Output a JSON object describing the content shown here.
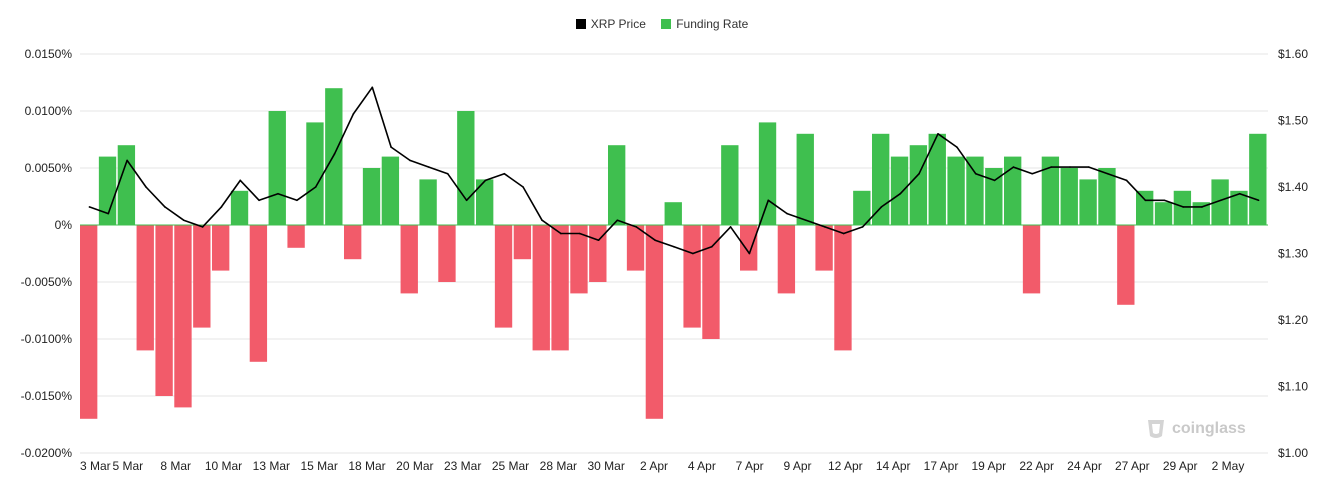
{
  "legend": {
    "price_label": "XRP Price",
    "funding_label": "Funding Rate"
  },
  "colors": {
    "price": "#000000",
    "positive": "#3fbf4f",
    "negative": "#f25b6a",
    "grid": "#e6e6e6"
  },
  "watermark": "coinglass",
  "chart_data": {
    "type": "area",
    "left_axis": {
      "ticks": [
        "0.0150%",
        "0.0100%",
        "0.0050%",
        "0%",
        "-0.0050%",
        "-0.0100%",
        "-0.0150%",
        "-0.0200%"
      ],
      "values": [
        0.015,
        0.01,
        0.005,
        0,
        -0.005,
        -0.01,
        -0.015,
        -0.02
      ],
      "range": [
        -0.02,
        0.015
      ]
    },
    "right_axis": {
      "ticks": [
        "$1.60",
        "$1.50",
        "$1.40",
        "$1.30",
        "$1.20",
        "$1.10",
        "$1.00"
      ],
      "values": [
        1.6,
        1.5,
        1.4,
        1.3,
        1.2,
        1.1,
        1.0
      ],
      "range": [
        1.0,
        1.6
      ]
    },
    "x_ticks": [
      "3 Mar",
      "5 Mar",
      "8 Mar",
      "10 Mar",
      "13 Mar",
      "15 Mar",
      "18 Mar",
      "20 Mar",
      "23 Mar",
      "25 Mar",
      "28 Mar",
      "30 Mar",
      "2 Apr",
      "4 Apr",
      "7 Apr",
      "9 Apr",
      "12 Apr",
      "14 Apr",
      "17 Apr",
      "19 Apr",
      "22 Apr",
      "24 Apr",
      "27 Apr",
      "29 Apr",
      "2 May"
    ],
    "series": [
      {
        "name": "Funding Rate",
        "axis": "left",
        "x": [
          "3 Mar",
          "4 Mar",
          "5 Mar",
          "6 Mar",
          "7 Mar",
          "8 Mar",
          "9 Mar",
          "10 Mar",
          "11 Mar",
          "12 Mar",
          "13 Mar",
          "14 Mar",
          "15 Mar",
          "16 Mar",
          "17 Mar",
          "18 Mar",
          "19 Mar",
          "20 Mar",
          "21 Mar",
          "22 Mar",
          "23 Mar",
          "24 Mar",
          "25 Mar",
          "26 Mar",
          "27 Mar",
          "28 Mar",
          "29 Mar",
          "30 Mar",
          "31 Mar",
          "1 Apr",
          "2 Apr",
          "3 Apr",
          "4 Apr",
          "5 Apr",
          "6 Apr",
          "7 Apr",
          "8 Apr",
          "9 Apr",
          "10 Apr",
          "11 Apr",
          "12 Apr",
          "13 Apr",
          "14 Apr",
          "15 Apr",
          "16 Apr",
          "17 Apr",
          "18 Apr",
          "19 Apr",
          "20 Apr",
          "21 Apr",
          "22 Apr",
          "23 Apr",
          "24 Apr",
          "25 Apr",
          "26 Apr",
          "27 Apr",
          "28 Apr",
          "29 Apr",
          "30 Apr",
          "1 May",
          "2 May",
          "3 May",
          "4 May"
        ],
        "values": [
          -0.017,
          0.006,
          0.007,
          -0.011,
          -0.015,
          -0.016,
          -0.009,
          -0.004,
          0.003,
          -0.012,
          0.01,
          -0.002,
          0.009,
          0.012,
          -0.003,
          0.005,
          0.006,
          -0.006,
          0.004,
          -0.005,
          0.01,
          0.004,
          -0.009,
          -0.003,
          -0.011,
          -0.011,
          -0.006,
          -0.005,
          0.007,
          -0.004,
          -0.017,
          0.002,
          -0.009,
          -0.01,
          0.007,
          -0.004,
          0.009,
          -0.006,
          0.008,
          -0.004,
          -0.011,
          0.003,
          0.008,
          0.006,
          0.007,
          0.008,
          0.006,
          0.006,
          0.005,
          0.006,
          -0.006,
          0.006,
          0.005,
          0.004,
          0.005,
          -0.007,
          0.003,
          0.002,
          0.003,
          0.002,
          0.004,
          0.003,
          0.008
        ]
      },
      {
        "name": "XRP Price",
        "axis": "right",
        "x": [
          "3 Mar",
          "4 Mar",
          "5 Mar",
          "6 Mar",
          "7 Mar",
          "8 Mar",
          "9 Mar",
          "10 Mar",
          "11 Mar",
          "12 Mar",
          "13 Mar",
          "14 Mar",
          "15 Mar",
          "16 Mar",
          "17 Mar",
          "18 Mar",
          "19 Mar",
          "20 Mar",
          "21 Mar",
          "22 Mar",
          "23 Mar",
          "24 Mar",
          "25 Mar",
          "26 Mar",
          "27 Mar",
          "28 Mar",
          "29 Mar",
          "30 Mar",
          "31 Mar",
          "1 Apr",
          "2 Apr",
          "3 Apr",
          "4 Apr",
          "5 Apr",
          "6 Apr",
          "7 Apr",
          "8 Apr",
          "9 Apr",
          "10 Apr",
          "11 Apr",
          "12 Apr",
          "13 Apr",
          "14 Apr",
          "15 Apr",
          "16 Apr",
          "17 Apr",
          "18 Apr",
          "19 Apr",
          "20 Apr",
          "21 Apr",
          "22 Apr",
          "23 Apr",
          "24 Apr",
          "25 Apr",
          "26 Apr",
          "27 Apr",
          "28 Apr",
          "29 Apr",
          "30 Apr",
          "1 May",
          "2 May",
          "3 May",
          "4 May"
        ],
        "values": [
          1.37,
          1.36,
          1.44,
          1.4,
          1.37,
          1.35,
          1.34,
          1.37,
          1.41,
          1.38,
          1.39,
          1.38,
          1.4,
          1.45,
          1.51,
          1.55,
          1.46,
          1.44,
          1.43,
          1.42,
          1.38,
          1.41,
          1.42,
          1.4,
          1.35,
          1.33,
          1.33,
          1.32,
          1.35,
          1.34,
          1.32,
          1.31,
          1.3,
          1.31,
          1.34,
          1.3,
          1.38,
          1.36,
          1.35,
          1.34,
          1.33,
          1.34,
          1.37,
          1.39,
          1.42,
          1.48,
          1.46,
          1.42,
          1.41,
          1.43,
          1.42,
          1.43,
          1.43,
          1.43,
          1.42,
          1.41,
          1.38,
          1.38,
          1.37,
          1.37,
          1.38,
          1.39,
          1.38
        ]
      }
    ]
  }
}
